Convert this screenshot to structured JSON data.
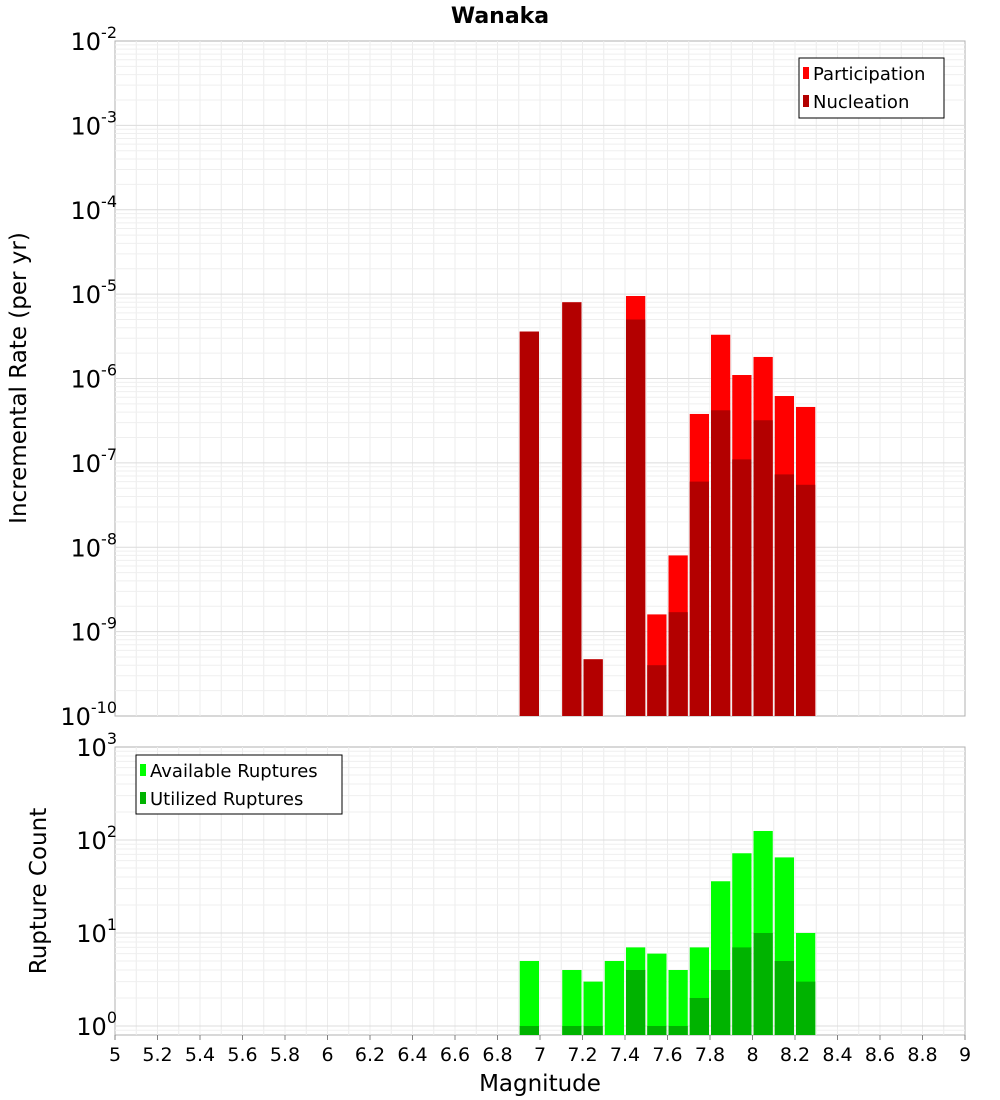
{
  "chart_data": [
    {
      "type": "bar",
      "title": "Wanaka",
      "ylabel": "Incremental Rate (per yr)",
      "xlabel": "",
      "x_range": [
        5,
        9
      ],
      "y_range": [
        1e-10,
        0.01
      ],
      "y_scale": "log",
      "y_tick_labels": [
        {
          "value": 1e-10,
          "base": "10",
          "exp": "-10"
        },
        {
          "value": 1e-09,
          "base": "10",
          "exp": "-9"
        },
        {
          "value": 1e-08,
          "base": "10",
          "exp": "-8"
        },
        {
          "value": 1e-07,
          "base": "10",
          "exp": "-7"
        },
        {
          "value": 1e-06,
          "base": "10",
          "exp": "-6"
        },
        {
          "value": 1e-05,
          "base": "10",
          "exp": "-5"
        },
        {
          "value": 0.0001,
          "base": "10",
          "exp": "-4"
        },
        {
          "value": 0.001,
          "base": "10",
          "exp": "-3"
        },
        {
          "value": 0.01,
          "base": "10",
          "exp": "-2"
        }
      ],
      "grid": true,
      "legend_position": "top-right",
      "bin_width": 0.1,
      "x": [
        6.95,
        7.15,
        7.25,
        7.45,
        7.55,
        7.65,
        7.75,
        7.85,
        7.95,
        8.05,
        8.15,
        8.25
      ],
      "series": [
        {
          "name": "Participation",
          "color": "#ff0000",
          "values": [
            3.6e-06,
            8e-06,
            4.7e-10,
            9.5e-06,
            1.6e-09,
            8e-09,
            3.8e-07,
            3.3e-06,
            1.1e-06,
            1.8e-06,
            6.2e-07,
            4.6e-07
          ]
        },
        {
          "name": "Nucleation",
          "color": "#b30000",
          "values": [
            3.6e-06,
            8e-06,
            4.7e-10,
            5e-06,
            4e-10,
            1.7e-09,
            6e-08,
            4.2e-07,
            1.1e-07,
            3.2e-07,
            7.3e-08,
            5.5e-08
          ]
        }
      ]
    },
    {
      "type": "bar",
      "title": "",
      "ylabel": "Rupture Count",
      "xlabel": "Magnitude",
      "x_range": [
        5,
        9
      ],
      "y_range": [
        0.8,
        1000
      ],
      "y_scale": "log",
      "x_tick_labels": [
        "5",
        "5.2",
        "5.4",
        "5.6",
        "5.8",
        "6",
        "6.2",
        "6.4",
        "6.6",
        "6.8",
        "7",
        "7.2",
        "7.4",
        "7.6",
        "7.8",
        "8",
        "8.2",
        "8.4",
        "8.6",
        "8.8",
        "9"
      ],
      "y_tick_labels": [
        {
          "value": 1,
          "base": "10",
          "exp": "0"
        },
        {
          "value": 10,
          "base": "10",
          "exp": "1"
        },
        {
          "value": 100,
          "base": "10",
          "exp": "2"
        },
        {
          "value": 1000,
          "base": "10",
          "exp": "3"
        }
      ],
      "grid": true,
      "legend_position": "top-left",
      "bin_width": 0.1,
      "x": [
        6.95,
        7.15,
        7.25,
        7.35,
        7.45,
        7.55,
        7.65,
        7.75,
        7.85,
        7.95,
        8.05,
        8.15,
        8.25
      ],
      "series": [
        {
          "name": "Available Ruptures",
          "color": "#00ff00",
          "values": [
            5,
            4,
            3,
            5,
            7,
            6,
            4,
            7,
            36,
            72,
            125,
            65,
            10
          ]
        },
        {
          "name": "Utilized Ruptures",
          "color": "#00b300",
          "values": [
            1,
            1,
            1,
            0,
            4,
            1,
            1,
            2,
            4,
            7,
            10,
            5,
            3
          ]
        }
      ]
    }
  ]
}
